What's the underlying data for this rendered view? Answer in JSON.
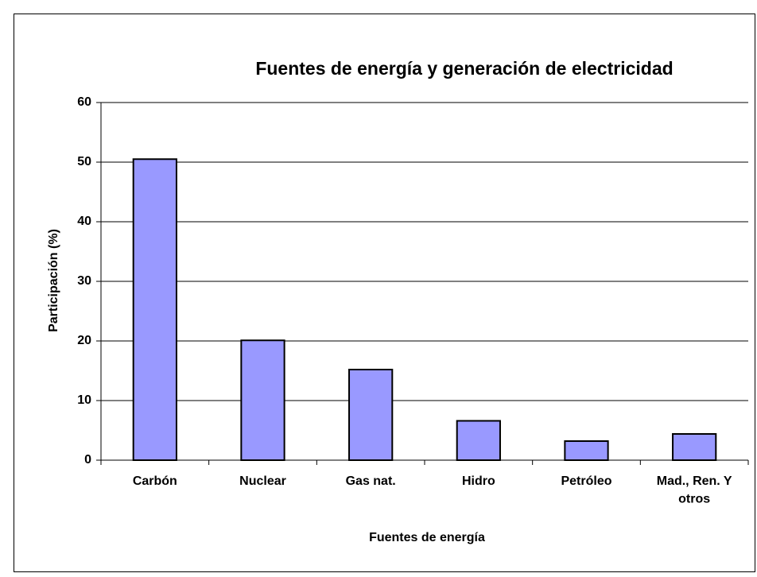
{
  "chart_data": {
    "type": "bar",
    "title": "Fuentes de energía y generación de electricidad",
    "x_label": "Fuentes de energía",
    "y_label": "Participación (%)",
    "categories": [
      "Carbón",
      "Nuclear",
      "Gas nat.",
      "Hidro",
      "Petróleo",
      "Mad., Ren. Y otros"
    ],
    "values": [
      50.5,
      20.1,
      15.2,
      6.6,
      3.2,
      4.4
    ],
    "color": "#9999ff",
    "ylim": [
      0,
      60
    ],
    "yticks": [
      0,
      10,
      20,
      30,
      40,
      50,
      60
    ],
    "grid": true
  }
}
